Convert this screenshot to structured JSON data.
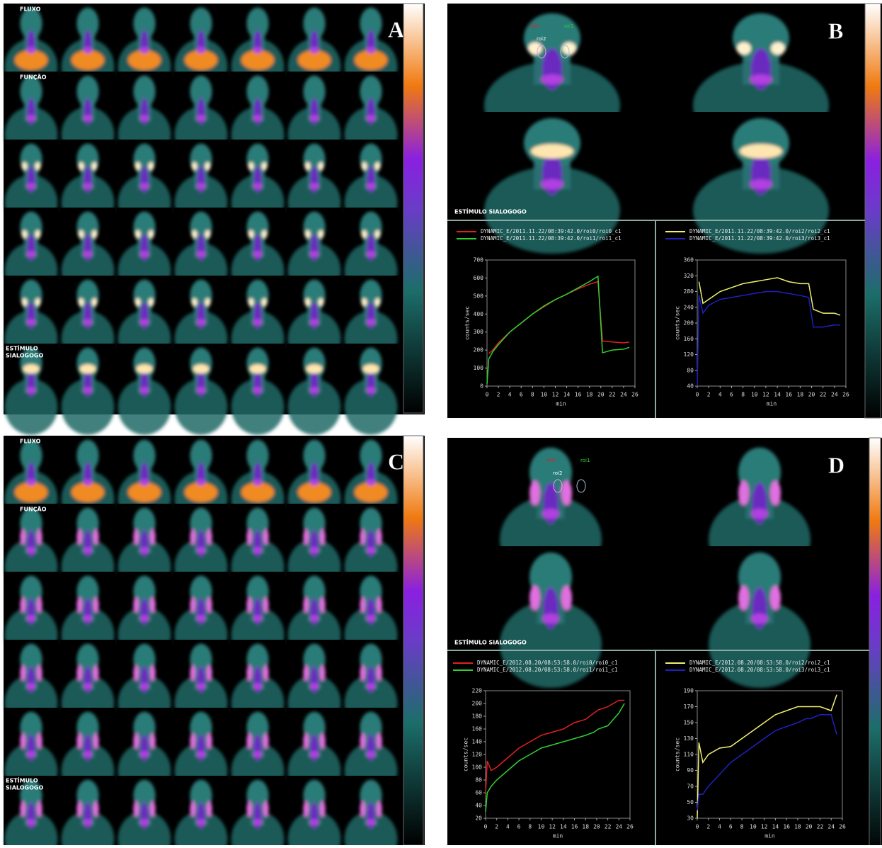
{
  "panels": [
    {
      "letter": "A",
      "labels": [
        "FLUXO",
        "FUNÇÃO",
        "ESTÍMULO",
        "SIALOGOGO"
      ]
    },
    {
      "letter": "B",
      "rois": [
        "roi0",
        "roi1",
        "roi2"
      ],
      "labels": [
        "ESTÍMULO SIALOGOGO"
      ]
    },
    {
      "letter": "C",
      "labels": [
        "FLUXO",
        "FUNÇÃO",
        "ESTÍMULO",
        "SIALOGOGO"
      ]
    },
    {
      "letter": "D",
      "rois": [
        "roi0",
        "roi1",
        "roi2"
      ],
      "labels": [
        "ESTÍMULO SIALOGOGO"
      ]
    }
  ],
  "chart_data": [
    {
      "type": "line",
      "xlabel": "min",
      "ylabel": "counts/sec",
      "xlim": [
        0,
        26
      ],
      "xticks": [
        0,
        2,
        4,
        6,
        8,
        10,
        12,
        14,
        16,
        18,
        20,
        22,
        24,
        26
      ],
      "ylim": [
        0,
        700
      ],
      "yticks": [
        0,
        100,
        200,
        300,
        400,
        500,
        600,
        700
      ],
      "x": [
        0,
        0.3,
        1,
        2,
        4,
        6,
        8,
        10,
        12,
        14,
        16,
        18,
        19.5,
        20.3,
        22,
        24,
        25
      ],
      "series": [
        {
          "name": "DYNAMIC_E/2011.11.22/08:39:42.0/roi0/roi0_c1",
          "color": "#e02020",
          "values": [
            null,
            180,
            200,
            240,
            300,
            350,
            400,
            440,
            480,
            510,
            540,
            565,
            580,
            250,
            245,
            240,
            245
          ]
        },
        {
          "name": "DYNAMIC_E/2011.11.22/08:39:42.0/roi1/roi1_c1",
          "color": "#30d030",
          "values": [
            10,
            150,
            190,
            230,
            300,
            350,
            400,
            445,
            480,
            510,
            545,
            580,
            610,
            185,
            200,
            205,
            215
          ]
        }
      ]
    },
    {
      "type": "line",
      "xlabel": "min",
      "ylabel": "counts/sec",
      "xlim": [
        0,
        26
      ],
      "xticks": [
        0,
        2,
        4,
        6,
        8,
        10,
        12,
        14,
        16,
        18,
        20,
        22,
        24,
        26
      ],
      "ylim": [
        40,
        360
      ],
      "yticks": [
        40,
        80,
        120,
        160,
        200,
        240,
        280,
        320,
        360
      ],
      "x": [
        0,
        0.3,
        1,
        2,
        4,
        6,
        8,
        10,
        12,
        14,
        16,
        18,
        19.5,
        20.3,
        22,
        24,
        25
      ],
      "series": [
        {
          "name": "DYNAMIC_E/2011.11.22/08:39:42.0/roi2/roi2_c1",
          "color": "#f0f070",
          "values": [
            null,
            305,
            250,
            260,
            280,
            290,
            300,
            305,
            310,
            315,
            305,
            300,
            300,
            235,
            225,
            225,
            220
          ]
        },
        {
          "name": "DYNAMIC_E/2011.11.22/08:39:42.0/roi3/roi3_c1",
          "color": "#2020c0",
          "values": [
            40,
            270,
            225,
            245,
            260,
            265,
            270,
            275,
            280,
            280,
            275,
            270,
            265,
            190,
            190,
            195,
            195
          ]
        }
      ]
    },
    {
      "type": "line",
      "xlabel": "min",
      "ylabel": "counts/sec",
      "xlim": [
        0,
        26
      ],
      "xticks": [
        0,
        2,
        4,
        6,
        8,
        10,
        12,
        14,
        16,
        18,
        20,
        22,
        24,
        26
      ],
      "ylim": [
        20,
        220
      ],
      "yticks": [
        20,
        40,
        60,
        80,
        100,
        120,
        140,
        160,
        180,
        200,
        220
      ],
      "x": [
        0,
        0.3,
        1,
        2,
        4,
        6,
        8,
        10,
        12,
        14,
        16,
        18,
        19.5,
        20.3,
        22,
        24,
        25
      ],
      "series": [
        {
          "name": "DYNAMIC_E/2012.08.20/08:53:58.0/roi0/roi0_c1",
          "color": "#e02020",
          "values": [
            60,
            110,
            95,
            100,
            115,
            130,
            140,
            150,
            155,
            160,
            170,
            175,
            185,
            190,
            195,
            205,
            205
          ]
        },
        {
          "name": "DYNAMIC_E/2012.08.20/08:53:58.0/roi1/roi1_c1",
          "color": "#30d030",
          "values": [
            30,
            60,
            70,
            80,
            95,
            110,
            120,
            130,
            135,
            140,
            145,
            150,
            155,
            160,
            165,
            185,
            200
          ]
        }
      ]
    },
    {
      "type": "line",
      "xlabel": "min",
      "ylabel": "counts/sec",
      "xlim": [
        0,
        26
      ],
      "xticks": [
        0,
        2,
        4,
        6,
        8,
        10,
        12,
        14,
        16,
        18,
        20,
        22,
        24,
        26
      ],
      "ylim": [
        30,
        190
      ],
      "yticks": [
        30,
        50,
        70,
        90,
        110,
        130,
        150,
        170,
        190
      ],
      "x": [
        0,
        0.3,
        1,
        2,
        4,
        6,
        8,
        10,
        12,
        14,
        16,
        18,
        19.5,
        20.3,
        22,
        24,
        25
      ],
      "series": [
        {
          "name": "DYNAMIC_E/2012.08.20/08:53:58.0/roi2/roi2_c1",
          "color": "#f0f070",
          "values": [
            30,
            125,
            100,
            110,
            118,
            120,
            130,
            140,
            150,
            160,
            165,
            170,
            170,
            170,
            170,
            165,
            185
          ]
        },
        {
          "name": "DYNAMIC_E/2012.08.20/08:53:58.0/roi3/roi3_c1",
          "color": "#2020c0",
          "values": [
            40,
            60,
            60,
            70,
            85,
            100,
            110,
            120,
            130,
            140,
            145,
            150,
            155,
            155,
            160,
            160,
            135
          ]
        }
      ]
    }
  ]
}
